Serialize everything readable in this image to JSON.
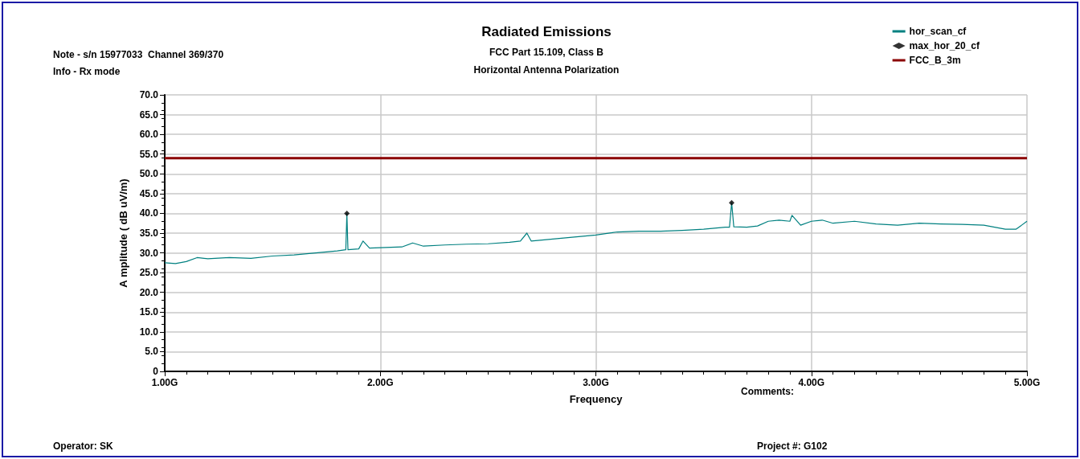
{
  "chart_data": {
    "type": "line",
    "title": "Radiated Emissions",
    "subtitle": "FCC Part 15.109, Class B\nHorizontal Antenna Polarization",
    "xlabel": "Frequency",
    "ylabel": "A mplitude ( dB uV/m)",
    "annotations": [
      "Note - s/n 15977033  Channel 369/370",
      "Info - Rx mode",
      "Comments:",
      "Operator: SK",
      "Project #: G102"
    ],
    "xlim": [
      1,
      5
    ],
    "xticks": [
      {
        "value": 1,
        "label": "1.00G"
      },
      {
        "value": 2,
        "label": "2.00G"
      },
      {
        "value": 3,
        "label": "3.00G"
      },
      {
        "value": 4,
        "label": "4.00G"
      },
      {
        "value": 5,
        "label": "5.00G"
      }
    ],
    "ylim": [
      0,
      70
    ],
    "yticks": [
      0,
      {
        "value": 5,
        "label": "5.0"
      },
      {
        "value": 10,
        "label": "10.0"
      },
      {
        "value": 15,
        "label": "15.0"
      },
      {
        "value": 20,
        "label": "20.0"
      },
      {
        "value": 25,
        "label": "25.0"
      },
      {
        "value": 30,
        "label": "30.0"
      },
      {
        "value": 35,
        "label": "35.0"
      },
      {
        "value": 40,
        "label": "40.0"
      },
      {
        "value": 45,
        "label": "45.0"
      },
      {
        "value": 50,
        "label": "50.0"
      },
      {
        "value": 55,
        "label": "55.0"
      },
      {
        "value": 60,
        "label": "60.0"
      },
      {
        "value": 65,
        "label": "65.0"
      },
      {
        "value": 70,
        "label": "70.0"
      }
    ],
    "grid": true,
    "legend": "top right",
    "line_style": "solid",
    "series": [
      {
        "name": "hor_scan_cf",
        "color": "#008080",
        "marker": "none",
        "x": [
          1.0,
          1.05,
          1.1,
          1.15,
          1.2,
          1.3,
          1.4,
          1.5,
          1.6,
          1.7,
          1.8,
          1.84,
          1.845,
          1.85,
          1.9,
          1.92,
          1.95,
          2.0,
          2.1,
          2.15,
          2.2,
          2.3,
          2.4,
          2.5,
          2.6,
          2.65,
          2.68,
          2.7,
          2.8,
          2.9,
          3.0,
          3.1,
          3.2,
          3.3,
          3.4,
          3.5,
          3.6,
          3.62,
          3.63,
          3.64,
          3.7,
          3.75,
          3.8,
          3.85,
          3.9,
          3.91,
          3.95,
          4.0,
          4.05,
          4.1,
          4.2,
          4.3,
          4.4,
          4.5,
          4.6,
          4.7,
          4.8,
          4.9,
          4.95,
          5.0
        ],
        "values": [
          27.5,
          27.3,
          27.8,
          28.8,
          28.5,
          28.8,
          28.6,
          29.2,
          29.5,
          30.0,
          30.5,
          30.8,
          40.0,
          30.8,
          31.0,
          33.0,
          31.2,
          31.3,
          31.5,
          32.5,
          31.7,
          32.0,
          32.2,
          32.3,
          32.7,
          33.0,
          35.0,
          33.0,
          33.5,
          34.0,
          34.5,
          35.3,
          35.5,
          35.5,
          35.7,
          36.0,
          36.5,
          36.5,
          42.7,
          36.6,
          36.5,
          36.8,
          38.0,
          38.3,
          38.0,
          39.5,
          37.0,
          38.0,
          38.3,
          37.5,
          38.0,
          37.3,
          37.0,
          37.5,
          37.3,
          37.2,
          37.0,
          36.0,
          36.0,
          38.0
        ]
      },
      {
        "name": "max_hor_20_cf",
        "type": "scatter",
        "color": "#000000",
        "marker": "diamond",
        "x": [
          1.845,
          3.63
        ],
        "values": [
          40.0,
          42.7
        ]
      },
      {
        "name": "FCC_B_3m",
        "color": "#8b0000",
        "marker": "none",
        "x": [
          1,
          5
        ],
        "values": [
          54.0,
          54.0
        ]
      }
    ]
  }
}
